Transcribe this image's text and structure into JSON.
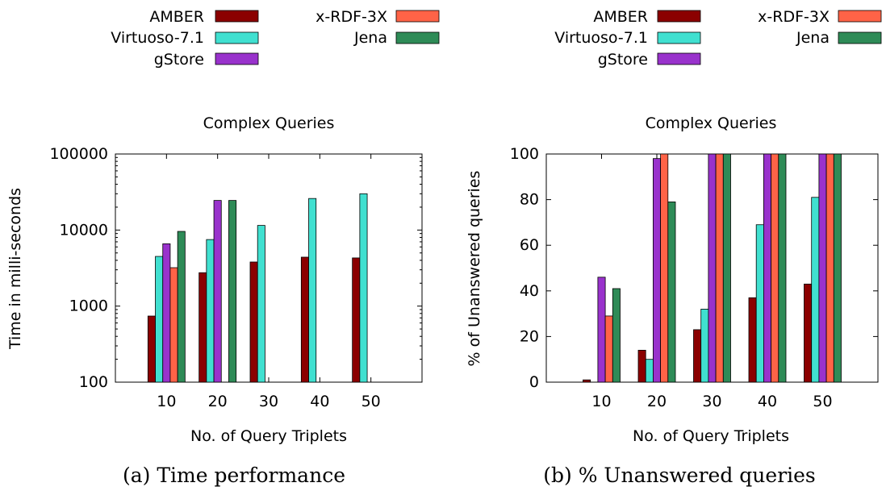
{
  "colors": {
    "AMBER": "#8b0000",
    "Virtuoso-7.1": "#40e0d0",
    "gStore": "#9932cc",
    "x-RDF-3X": "#ff6347",
    "Jena": "#2e8b57"
  },
  "chart_data": [
    {
      "type": "bar",
      "title": "Complex Queries",
      "xlabel": "No. of Query Triplets",
      "ylabel": "Time in milli-seconds",
      "caption": "(a) Time performance",
      "yscale": "log",
      "ylim": [
        100,
        100000
      ],
      "yticks": [
        100,
        1000,
        10000,
        100000
      ],
      "legend": "top",
      "categories": [
        "10",
        "20",
        "30",
        "40",
        "50"
      ],
      "series": [
        {
          "name": "AMBER",
          "values": [
            740,
            2750,
            3800,
            4400,
            4300
          ]
        },
        {
          "name": "Virtuoso-7.1",
          "values": [
            4500,
            7500,
            11500,
            26000,
            30000
          ]
        },
        {
          "name": "gStore",
          "values": [
            6600,
            24500,
            null,
            null,
            null
          ]
        },
        {
          "name": "x-RDF-3X",
          "values": [
            3200,
            null,
            null,
            null,
            null
          ]
        },
        {
          "name": "Jena",
          "values": [
            9600,
            24500,
            null,
            null,
            null
          ]
        }
      ]
    },
    {
      "type": "bar",
      "title": "Complex Queries",
      "xlabel": "No. of Query Triplets",
      "ylabel": "% of Unanswered queries",
      "caption": "(b) % Unanswered queries",
      "yscale": "linear",
      "ylim": [
        0,
        100
      ],
      "yticks": [
        0,
        20,
        40,
        60,
        80,
        100
      ],
      "legend": "top",
      "categories": [
        "10",
        "20",
        "30",
        "40",
        "50"
      ],
      "series": [
        {
          "name": "AMBER",
          "values": [
            1,
            14,
            23,
            37,
            43
          ]
        },
        {
          "name": "Virtuoso-7.1",
          "values": [
            0,
            10,
            32,
            69,
            81
          ]
        },
        {
          "name": "gStore",
          "values": [
            46,
            98,
            100,
            100,
            100
          ]
        },
        {
          "name": "x-RDF-3X",
          "values": [
            29,
            100,
            100,
            100,
            100
          ]
        },
        {
          "name": "Jena",
          "values": [
            41,
            79,
            100,
            100,
            100
          ]
        }
      ]
    }
  ]
}
